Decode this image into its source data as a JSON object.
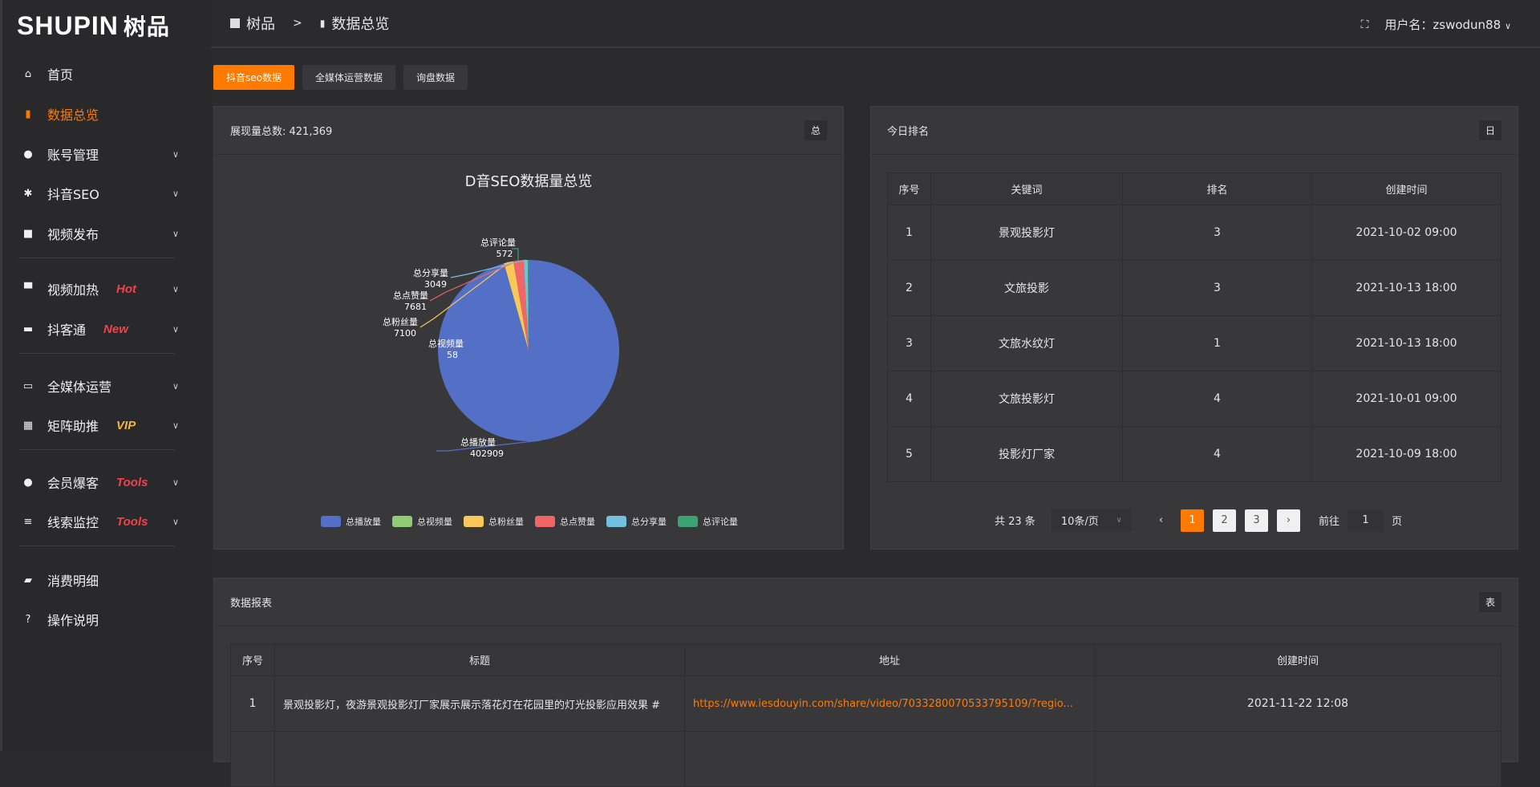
{
  "logo": {
    "text": "SHUPIN",
    "cn": "树品"
  },
  "breadcrumb": {
    "root": "树品",
    "separator": ">",
    "current": "数据总览"
  },
  "header": {
    "user_label": "用户名：zswodun88"
  },
  "sidebar": {
    "items": [
      {
        "label": "首页",
        "icon": "home-icon"
      },
      {
        "label": "数据总览",
        "icon": "bar-chart-icon",
        "active": true
      },
      {
        "label": "账号管理",
        "icon": "user-icon",
        "expandable": true
      },
      {
        "label": "抖音SEO",
        "icon": "gear-icon",
        "expandable": true
      },
      {
        "label": "视频发布",
        "icon": "camera-icon",
        "expandable": true
      },
      {
        "label": "视频加热",
        "icon": "sign-icon",
        "badge": "Hot",
        "badge_color": "#f0424b",
        "expandable": true
      },
      {
        "label": "抖客通",
        "icon": "chat-icon",
        "badge": "New",
        "badge_color": "#f0424b",
        "expandable": true
      },
      {
        "label": "全媒体运营",
        "icon": "monitor-icon",
        "expandable": true
      },
      {
        "label": "矩阵助推",
        "icon": "grid-icon",
        "badge": "VIP",
        "badge_color": "#f3b53f",
        "expandable": true
      },
      {
        "label": "会员爆客",
        "icon": "user-icon",
        "badge": "Tools",
        "badge_color": "#f0424b",
        "expandable": true
      },
      {
        "label": "线索监控",
        "icon": "sliders-icon",
        "badge": "Tools",
        "badge_color": "#f0424b",
        "expandable": true
      },
      {
        "label": "消费明细",
        "icon": "wallet-icon"
      },
      {
        "label": "操作说明",
        "icon": "help-icon"
      }
    ]
  },
  "tabs": [
    {
      "label": "抖音seo数据",
      "active": true
    },
    {
      "label": "全媒体运营数据"
    },
    {
      "label": "询盘数据"
    }
  ],
  "overview_card": {
    "title": "展现量总数: 421,369",
    "button": "总"
  },
  "chart_data": {
    "type": "pie",
    "title": "D音SEO数据量总览",
    "legend_position": "bottom",
    "labels": [
      "总播放量",
      "总视频量",
      "总粉丝量",
      "总点赞量",
      "总分享量",
      "总评论量"
    ],
    "values": [
      402909,
      58,
      7100,
      7681,
      3049,
      572
    ],
    "colors": [
      "#5470c6",
      "#91cc75",
      "#fac858",
      "#ee6666",
      "#73c0de",
      "#3ba272"
    ]
  },
  "ranking_card": {
    "title": "今日排名",
    "button": "日",
    "columns": [
      "序号",
      "关键词",
      "排名",
      "创建时间"
    ],
    "rows": [
      [
        "1",
        "景观投影灯",
        "3",
        "2021-10-02 09:00"
      ],
      [
        "2",
        "文旅投影",
        "3",
        "2021-10-13 18:00"
      ],
      [
        "3",
        "文旅水纹灯",
        "1",
        "2021-10-13 18:00"
      ],
      [
        "4",
        "文旅投影灯",
        "4",
        "2021-10-01 09:00"
      ],
      [
        "5",
        "投影灯厂家",
        "4",
        "2021-10-09 18:00"
      ]
    ],
    "pagination": {
      "total": "共 23 条",
      "page_size": "10条/页",
      "pages": [
        "1",
        "2",
        "3"
      ],
      "current": "1",
      "goto_label": "前往",
      "goto_value": "1",
      "page_suffix": "页"
    }
  },
  "report_card": {
    "title": "数据报表",
    "button": "表",
    "columns": [
      "序号",
      "标题",
      "地址",
      "创建时间"
    ],
    "rows": [
      [
        "1",
        "景观投影灯，夜游景观投影灯厂家展示展示落花灯在花园里的灯光投影应用效果 #",
        "https://www.iesdouyin.com/share/video/7033280070533795109/?regio...",
        "2021-11-22 12:08"
      ]
    ]
  },
  "accent": "#ff7a00"
}
